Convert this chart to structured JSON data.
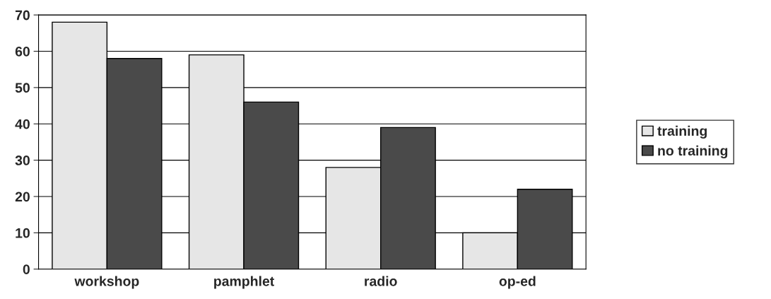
{
  "chart_data": {
    "type": "bar",
    "categories": [
      "workshop",
      "pamphlet",
      "radio",
      "op-ed"
    ],
    "series": [
      {
        "name": "training",
        "color": "#e6e6e6",
        "values": [
          68,
          59,
          28,
          10
        ]
      },
      {
        "name": "no training",
        "color": "#4a4a4a",
        "values": [
          58,
          46,
          39,
          22
        ]
      }
    ],
    "ylim": [
      0,
      70
    ],
    "yticks": [
      0,
      10,
      20,
      30,
      40,
      50,
      60,
      70
    ],
    "grid": "y",
    "legend": "right"
  }
}
